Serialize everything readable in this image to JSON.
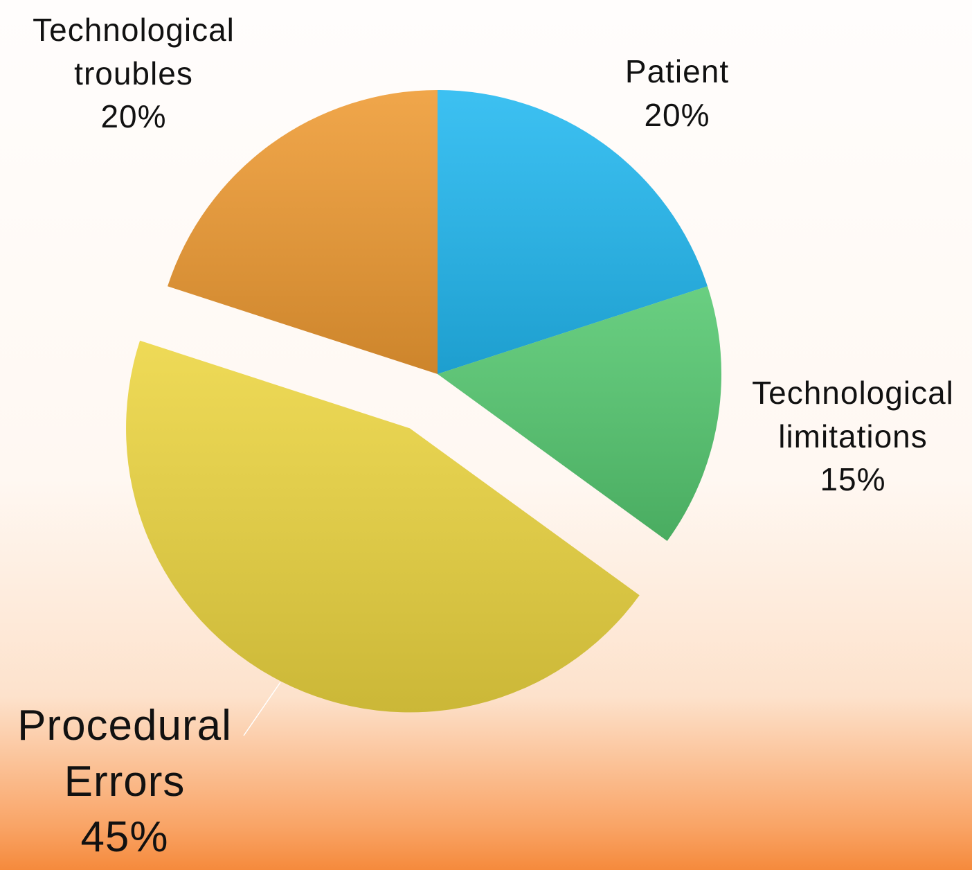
{
  "chart_data": {
    "type": "pie",
    "categories": [
      "Patient",
      "Technological limitations",
      "Procedural Errors",
      "Technological troubles"
    ],
    "values": [
      20,
      15,
      45,
      20
    ],
    "value_labels": [
      "20%",
      "15%",
      "45%",
      "20%"
    ],
    "colors": [
      "#22b8f0",
      "#55c870",
      "#ecd540",
      "#ee9a32"
    ],
    "exploded": [
      false,
      false,
      true,
      false
    ]
  }
}
